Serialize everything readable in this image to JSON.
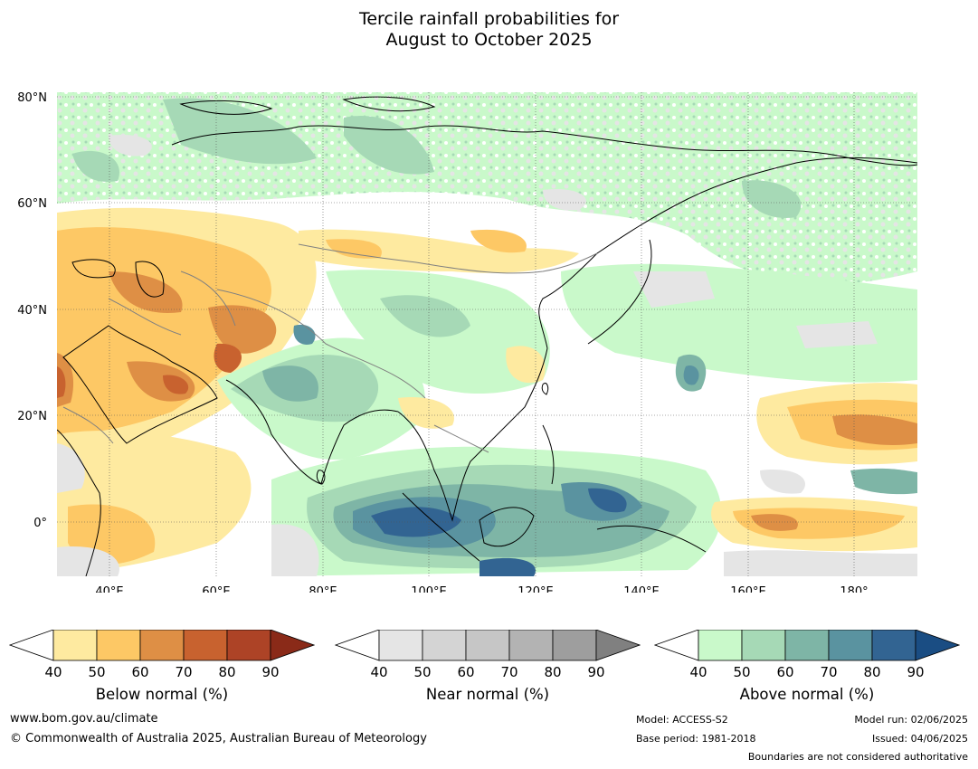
{
  "title": {
    "line1": "Tercile rainfall probabilities for",
    "line2": "August to October 2025"
  },
  "map": {
    "lat_labels": [
      "80°N",
      "60°N",
      "40°N",
      "20°N",
      "0°"
    ],
    "lon_labels": [
      "40°E",
      "60°E",
      "80°E",
      "100°E",
      "120°E",
      "140°E",
      "160°E",
      "180°"
    ],
    "land_color": "#ffffff",
    "coast_color": "#000000",
    "border_color": "#808080"
  },
  "colorbars": [
    {
      "label": "Below normal (%)",
      "ticks": [
        "40",
        "50",
        "60",
        "70",
        "80",
        "90"
      ],
      "colors": [
        "#ffffff",
        "#feeaa0",
        "#fdc865",
        "#de8f45",
        "#c8622f",
        "#ad4326",
        "#8a2a18"
      ]
    },
    {
      "label": "Near normal (%)",
      "ticks": [
        "40",
        "50",
        "60",
        "70",
        "80",
        "90"
      ],
      "colors": [
        "#ffffff",
        "#e5e5e5",
        "#d4d4d4",
        "#c6c6c6",
        "#b3b3b3",
        "#9e9e9e",
        "#808080"
      ]
    },
    {
      "label": "Above normal (%)",
      "ticks": [
        "40",
        "50",
        "60",
        "70",
        "80",
        "90"
      ],
      "colors": [
        "#ffffff",
        "#c9f9ca",
        "#a6d9b6",
        "#7eb5a6",
        "#5a93a0",
        "#326492",
        "#1a4d83"
      ]
    }
  ],
  "footer": {
    "website": "www.bom.gov.au/climate",
    "copyright": "© Commonwealth of Australia 2025, Australian Bureau of Meteorology",
    "model": "Model: ACCESS-S2",
    "base_period": "Base period: 1981-2018",
    "model_run": "Model run: 02/06/2025",
    "issued": "Issued: 04/06/2025",
    "disclaimer": "Boundaries are not considered authoritative"
  }
}
